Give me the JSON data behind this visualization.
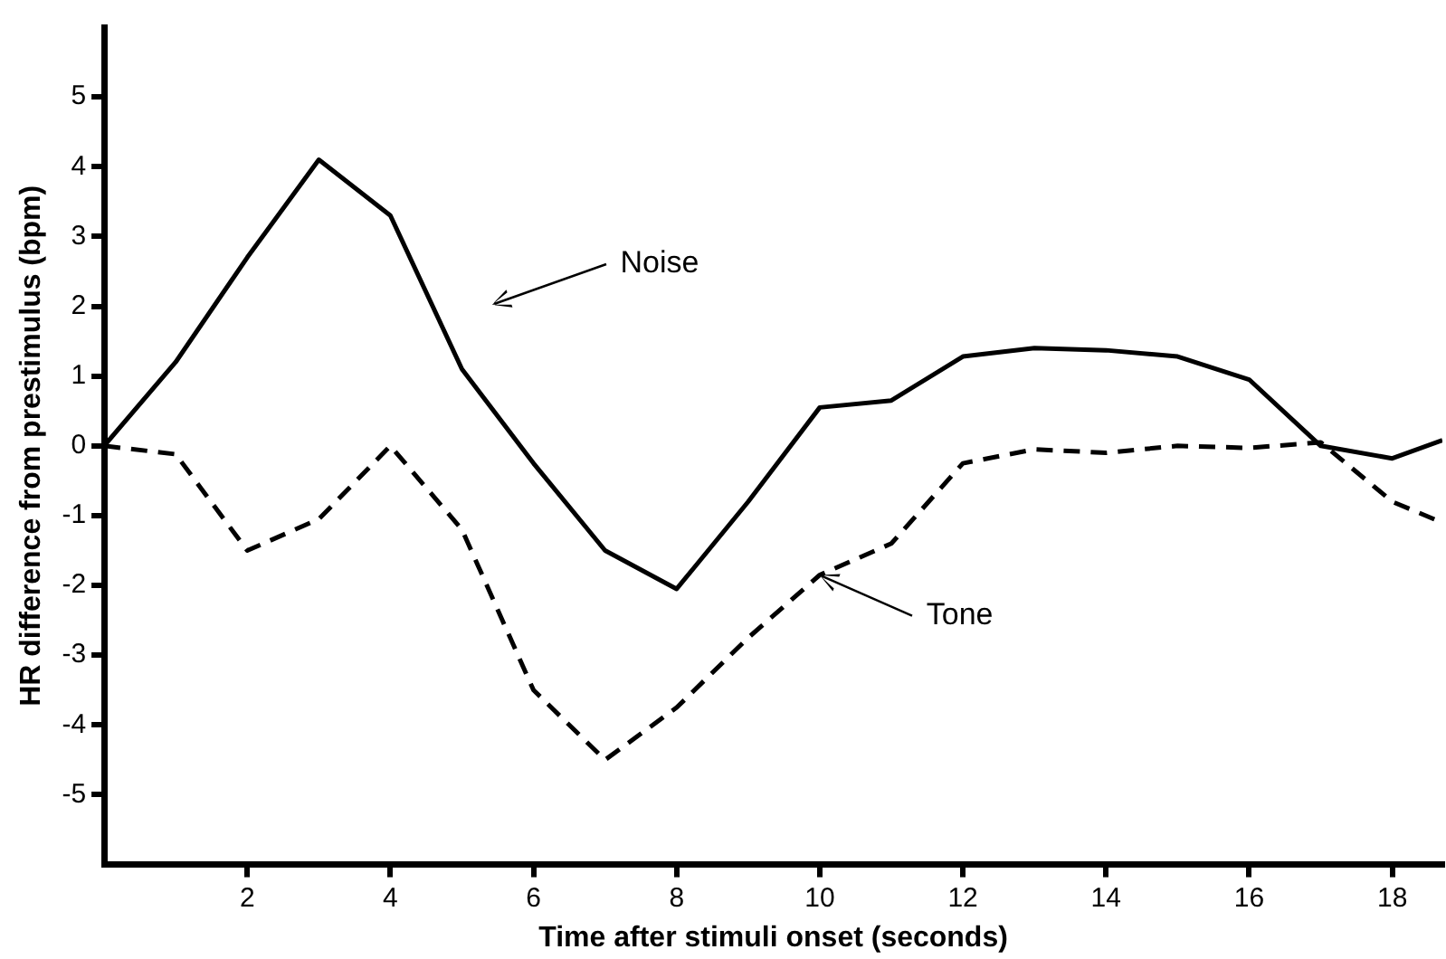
{
  "chart_data": {
    "type": "line",
    "xlabel": "Time after stimuli onset (seconds)",
    "ylabel": "HR difference from prestimulus (bpm)",
    "x": [
      0,
      1,
      2,
      3,
      4,
      5,
      6,
      7,
      8,
      9,
      10,
      11,
      12,
      13,
      14,
      15,
      16,
      17,
      18,
      18.7
    ],
    "series": [
      {
        "color": "#000000",
        "line_style": "solid",
        "values": [
          0,
          1.2,
          2.7,
          4.1,
          3.3,
          1.1,
          -0.25,
          -1.5,
          -2.05,
          -0.8,
          0.55,
          0.65,
          1.28,
          1.4,
          1.37,
          1.28,
          0.95,
          0.0,
          -0.18,
          0.08
        ]
      },
      {
        "color": "#000000",
        "line_style": "dashed",
        "values": [
          0,
          -0.12,
          -1.5,
          -1.05,
          0.0,
          -1.2,
          -3.5,
          -4.5,
          -3.75,
          -2.75,
          -1.85,
          -1.4,
          -0.25,
          -0.05,
          -0.1,
          0.0,
          -0.03,
          0.05,
          -0.8,
          -1.1
        ]
      }
    ],
    "xlim": [
      0,
      18.7
    ],
    "xticks": [
      2,
      4,
      6,
      8,
      10,
      12,
      14,
      16,
      18
    ],
    "ylim": [
      -6,
      6
    ],
    "yticks": [
      -5,
      -4,
      -3,
      -2,
      -1,
      0,
      1,
      2,
      3,
      4,
      5
    ],
    "annotations": [
      "Noise",
      "Tone"
    ],
    "grid": false,
    "legend": false,
    "marker": "none"
  }
}
